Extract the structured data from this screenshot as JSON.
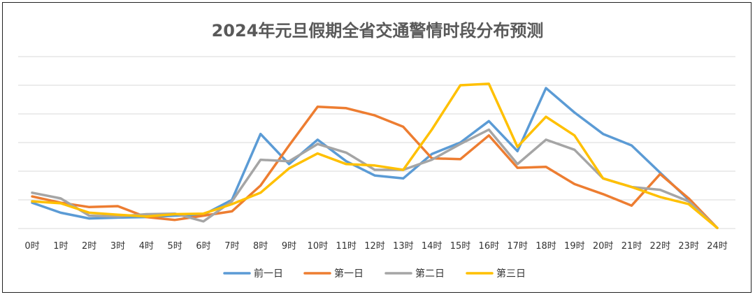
{
  "chart_data": {
    "type": "line",
    "title": "2024年元旦假期全省交通警情时段分布预测",
    "xlabel": "",
    "ylabel": "",
    "categories": [
      "0时",
      "1时",
      "2时",
      "3时",
      "4时",
      "5时",
      "6时",
      "7时",
      "8时",
      "9时",
      "10时",
      "11时",
      "12时",
      "13时",
      "14时",
      "15时",
      "16时",
      "17时",
      "18时",
      "19时",
      "20时",
      "21时",
      "22时",
      "23时",
      "24时"
    ],
    "ylim": [
      0,
      6
    ],
    "grid": true,
    "legend_position": "bottom",
    "series": [
      {
        "name": "前一日",
        "color": "#5B9BD5",
        "values": [
          0.9,
          0.55,
          0.35,
          0.38,
          0.4,
          0.45,
          0.48,
          1.0,
          3.3,
          2.25,
          3.1,
          2.35,
          1.85,
          1.75,
          2.6,
          3.0,
          3.75,
          2.7,
          4.9,
          4.05,
          3.3,
          2.9,
          1.95,
          1.0,
          0.02
        ]
      },
      {
        "name": "第一日",
        "color": "#ED7D31",
        "values": [
          1.12,
          0.9,
          0.75,
          0.78,
          0.4,
          0.3,
          0.45,
          0.6,
          1.5,
          2.9,
          4.25,
          4.2,
          3.95,
          3.55,
          2.45,
          2.42,
          3.25,
          2.12,
          2.15,
          1.55,
          1.2,
          0.8,
          1.9,
          1.05,
          0.02
        ]
      },
      {
        "name": "第二日",
        "color": "#A5A5A5",
        "values": [
          1.25,
          1.05,
          0.45,
          0.42,
          0.5,
          0.52,
          0.25,
          0.95,
          2.4,
          2.35,
          2.95,
          2.65,
          2.05,
          2.05,
          2.4,
          2.95,
          3.45,
          2.25,
          3.1,
          2.75,
          1.75,
          1.45,
          1.35,
          0.95,
          0.02
        ]
      },
      {
        "name": "第三日",
        "color": "#FFC000",
        "values": [
          0.95,
          0.88,
          0.55,
          0.48,
          0.42,
          0.5,
          0.52,
          0.85,
          1.25,
          2.1,
          2.62,
          2.25,
          2.2,
          2.05,
          3.45,
          5.0,
          5.05,
          2.85,
          3.9,
          3.25,
          1.75,
          1.45,
          1.1,
          0.85,
          0.02
        ]
      }
    ]
  }
}
